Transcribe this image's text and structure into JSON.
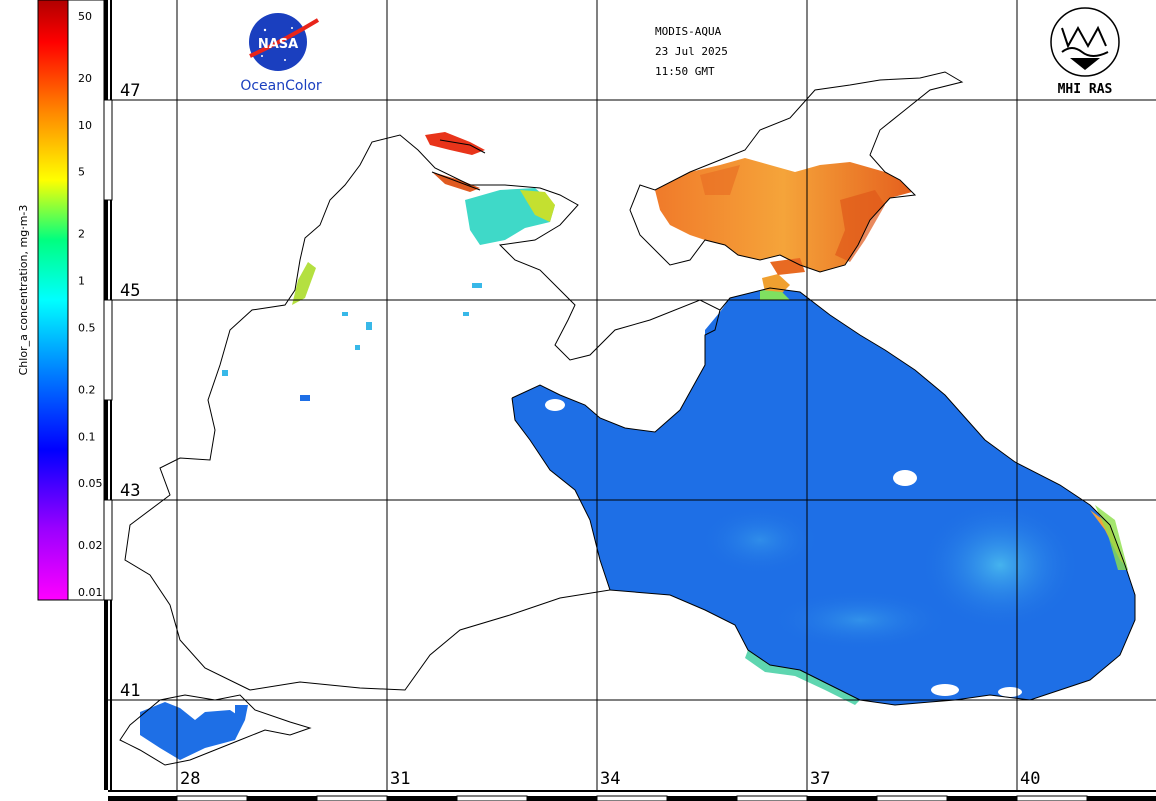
{
  "header": {
    "sensor": "MODIS-AQUA",
    "date": "23 Jul 2025",
    "time": "11:50 GMT"
  },
  "logos": {
    "nasa_text": "NASA",
    "oceancolor_text": "OceanColor",
    "mhi_text": "MHI RAS"
  },
  "colorbar": {
    "title": "Chlor_a concentration, mg·m-3",
    "ticks": [
      "50",
      "20",
      "10",
      "5",
      "2",
      "1",
      "0.5",
      "0.2",
      "0.1",
      "0.05",
      "0.02",
      "0.01"
    ],
    "tick_values": [
      50,
      20,
      10,
      5,
      2,
      1,
      0.5,
      0.2,
      0.1,
      0.05,
      0.02,
      0.01
    ],
    "range": [
      0.01,
      60
    ],
    "scale": "log",
    "colors": [
      "#ff00ff",
      "#8000ff",
      "#0000ff",
      "#0080ff",
      "#00ffff",
      "#00ff80",
      "#ffff00",
      "#ff8000",
      "#ff0000",
      "#800000"
    ]
  },
  "map": {
    "lat_labels": [
      "47",
      "45",
      "43",
      "41"
    ],
    "lat_values": [
      47,
      45,
      43,
      41
    ],
    "lon_labels": [
      "28",
      "31",
      "34",
      "37",
      "40"
    ],
    "lon_values": [
      28,
      31,
      34,
      37,
      40
    ],
    "colors": {
      "open_sea": "#1e6fe6",
      "coastal": "#38b8e8",
      "azov": "#f29a2a",
      "azov_dark": "#e0581a",
      "plume": "#3fd9c8",
      "land": "#ffffff",
      "coast_line": "#000000"
    }
  }
}
